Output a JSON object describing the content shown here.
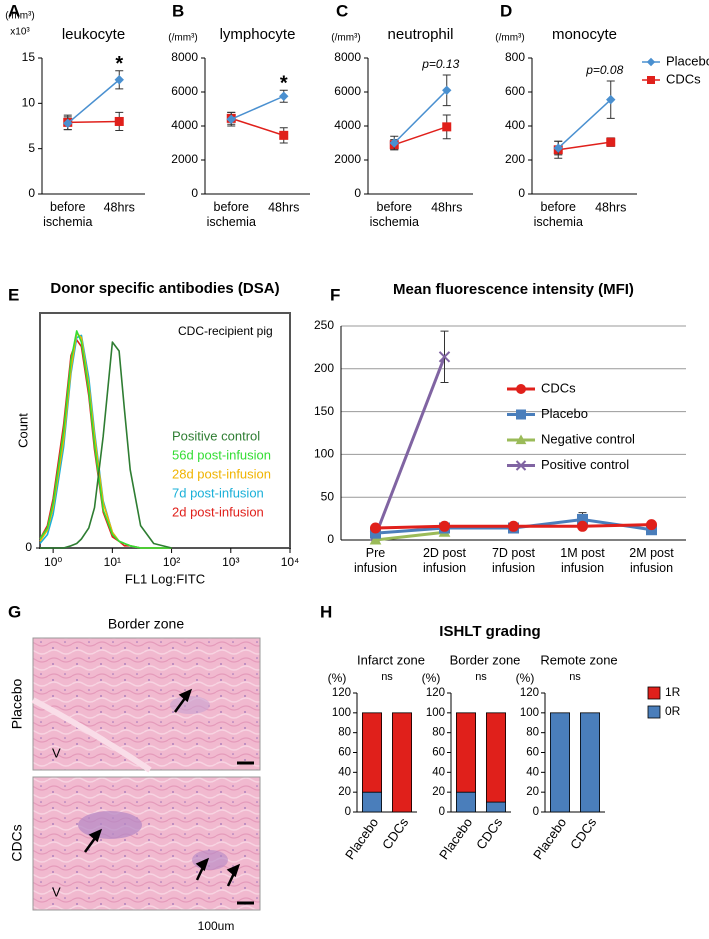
{
  "figure": {
    "g": {
      "panel": "G",
      "title": "Border zone",
      "rows": [
        "Placebo",
        "CDCs"
      ],
      "marks": [
        "V",
        "V"
      ],
      "scale": "100um"
    },
    "h": {
      "panel": "H",
      "title": "ISHLT grading"
    }
  },
  "chart_data": [
    {
      "type": "line",
      "panel": "A",
      "title": "leukocyte",
      "unit": "(/mm³)",
      "multiplier": "x10³",
      "annotation": "*",
      "categories": [
        "before ischemia",
        "48hrs"
      ],
      "ylim": [
        0,
        15
      ],
      "yticks": [
        0,
        5,
        10,
        15
      ],
      "series": [
        {
          "color": "#4a90d0",
          "marker": "diamond",
          "values": [
            7.8,
            12.6
          ],
          "errors": [
            0.7,
            1.0
          ]
        },
        {
          "color": "#e0201b",
          "marker": "square",
          "values": [
            7.9,
            8.0
          ],
          "errors": [
            0.8,
            1.0
          ]
        }
      ]
    },
    {
      "type": "line",
      "panel": "B",
      "title": "lymphocyte",
      "unit": "(/mm³)",
      "annotation": "*",
      "categories": [
        "before ischemia",
        "48hrs"
      ],
      "ylim": [
        0,
        8000
      ],
      "yticks": [
        0,
        2000,
        4000,
        6000,
        8000
      ],
      "series": [
        {
          "color": "#4a90d0",
          "marker": "diamond",
          "values": [
            4400,
            5750
          ],
          "errors": [
            400,
            350
          ]
        },
        {
          "color": "#e0201b",
          "marker": "square",
          "values": [
            4450,
            3450
          ],
          "errors": [
            350,
            450
          ]
        }
      ]
    },
    {
      "type": "line",
      "panel": "C",
      "title": "neutrophil",
      "unit": "(/mm³)",
      "annotation": "p=0.13",
      "categories": [
        "before ischemia",
        "48hrs"
      ],
      "ylim": [
        0,
        8000
      ],
      "yticks": [
        0,
        2000,
        4000,
        6000,
        8000
      ],
      "series": [
        {
          "color": "#4a90d0",
          "marker": "diamond",
          "values": [
            3000,
            6100
          ],
          "errors": [
            400,
            900
          ]
        },
        {
          "color": "#e0201b",
          "marker": "square",
          "values": [
            2900,
            3950
          ],
          "errors": [
            300,
            700
          ]
        }
      ]
    },
    {
      "type": "line",
      "panel": "D",
      "title": "monocyte",
      "unit": "(/mm³)",
      "annotation": "p=0.08",
      "categories": [
        "before ischemia",
        "48hrs"
      ],
      "ylim": [
        0,
        800
      ],
      "yticks": [
        0,
        200,
        400,
        600,
        800
      ],
      "series": [
        {
          "name": "Placebo",
          "color": "#4a90d0",
          "marker": "diamond",
          "values": [
            270,
            555
          ],
          "errors": [
            40,
            110
          ]
        },
        {
          "name": "CDCs",
          "color": "#e0201b",
          "marker": "square",
          "values": [
            260,
            305
          ],
          "errors": [
            50,
            25
          ]
        }
      ]
    },
    {
      "type": "flow",
      "panel": "E",
      "title": "Donor specific antibodies (DSA)",
      "inset": "CDC-recipient pig",
      "x_label": "FL1 Log:FITC",
      "y_label": "Count",
      "log_x": true,
      "xlim": [
        0.6,
        10000
      ],
      "xticks": [
        {
          "value": 1,
          "label": "10⁰"
        },
        {
          "value": 10,
          "label": "10¹"
        },
        {
          "value": 100,
          "label": "10²"
        },
        {
          "value": 1000,
          "label": "10³"
        },
        {
          "value": 10000,
          "label": "10⁴"
        }
      ],
      "ylim": [
        0,
        105
      ],
      "yticks": [
        0
      ],
      "x": [
        0.6,
        0.8,
        1,
        1.5,
        2,
        2.5,
        3,
        4,
        5,
        7,
        10,
        13,
        16,
        20,
        30,
        50,
        100
      ],
      "series": [
        {
          "name": "Positive control",
          "color": "#2e7d32",
          "values": [
            0,
            0,
            0,
            0,
            1,
            2,
            4,
            9,
            18,
            50,
            92,
            88,
            62,
            35,
            10,
            2,
            0
          ]
        },
        {
          "name": "56d post-infusion",
          "color": "#33dd33",
          "values": [
            4,
            9,
            20,
            52,
            84,
            97,
            92,
            70,
            46,
            17,
            6,
            3,
            2,
            1,
            0,
            0,
            0
          ]
        },
        {
          "name": "28d post-infusion",
          "color": "#f0b400",
          "values": [
            3,
            8,
            18,
            48,
            80,
            96,
            94,
            73,
            50,
            20,
            7,
            3,
            2,
            1,
            0,
            0,
            0
          ]
        },
        {
          "name": "7d post-infusion",
          "color": "#1ab0d8",
          "values": [
            2,
            6,
            15,
            45,
            78,
            94,
            95,
            76,
            52,
            21,
            7,
            3,
            2,
            1,
            0,
            0,
            0
          ]
        },
        {
          "name": "2d post-infusion",
          "color": "#e0201b",
          "values": [
            4,
            10,
            22,
            55,
            86,
            93,
            90,
            68,
            44,
            16,
            5,
            3,
            1,
            1,
            0,
            0,
            0
          ]
        }
      ]
    },
    {
      "type": "line",
      "panel": "F",
      "title": "Mean fluorescence intensity (MFI)",
      "grid": true,
      "categories": [
        "Pre infusion",
        "2D post infusion",
        "7D post infusion",
        "1M post infusion",
        "2M post infusion"
      ],
      "ylim": [
        0,
        250
      ],
      "yticks": [
        0,
        50,
        100,
        150,
        200,
        250
      ],
      "series": [
        {
          "name": "CDCs",
          "color": "#e0201b",
          "marker": "circle",
          "values": [
            14,
            16,
            16,
            16,
            18
          ]
        },
        {
          "name": "Placebo",
          "color": "#4a7ebb",
          "marker": "square",
          "values": [
            8,
            14,
            14,
            24,
            12
          ],
          "errors": [
            null,
            null,
            null,
            8,
            null
          ]
        },
        {
          "name": "Negative control",
          "color": "#9bbb59",
          "marker": "triangle",
          "values": [
            0,
            9,
            null,
            null,
            null
          ]
        },
        {
          "name": "Positive control",
          "color": "#8064a2",
          "marker": "x",
          "values": [
            5,
            214,
            null,
            null,
            null
          ],
          "errors": [
            null,
            30,
            null,
            null,
            null
          ]
        }
      ]
    },
    {
      "type": "stacked-bar",
      "title": "Infarct zone",
      "unit": "(%)",
      "annotation": "ns",
      "categories": [
        "Placebo",
        "CDCs"
      ],
      "ylim": [
        0,
        120
      ],
      "yticks": [
        0,
        20,
        40,
        60,
        80,
        100,
        120
      ],
      "series": [
        {
          "color": "#4a7ebb",
          "values": [
            20,
            0
          ]
        },
        {
          "color": "#e0201b",
          "values": [
            80,
            100
          ]
        }
      ]
    },
    {
      "type": "stacked-bar",
      "title": "Border zone",
      "unit": "(%)",
      "annotation": "ns",
      "categories": [
        "Placebo",
        "CDCs"
      ],
      "ylim": [
        0,
        120
      ],
      "yticks": [
        0,
        20,
        40,
        60,
        80,
        100,
        120
      ],
      "series": [
        {
          "color": "#4a7ebb",
          "values": [
            20,
            10
          ]
        },
        {
          "color": "#e0201b",
          "values": [
            80,
            90
          ]
        }
      ]
    },
    {
      "type": "stacked-bar",
      "title": "Remote zone",
      "unit": "(%)",
      "annotation": "ns",
      "categories": [
        "Placebo",
        "CDCs"
      ],
      "ylim": [
        0,
        120
      ],
      "yticks": [
        0,
        20,
        40,
        60,
        80,
        100,
        120
      ],
      "series": [
        {
          "name": "0R",
          "color": "#4a7ebb",
          "values": [
            100,
            100
          ]
        },
        {
          "name": "1R",
          "color": "#e0201b",
          "values": [
            0,
            0
          ]
        }
      ]
    }
  ]
}
